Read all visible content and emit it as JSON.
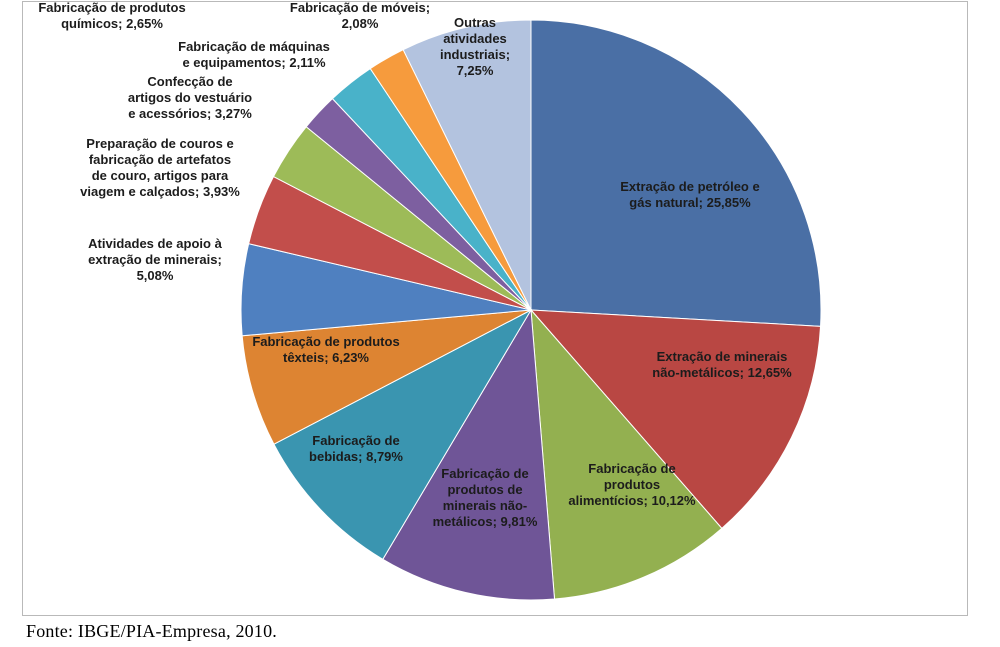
{
  "chart_data": {
    "type": "pie",
    "slices": [
      {
        "label": "Extração de petróleo e gás natural",
        "value": 25.85,
        "display": "25,85%",
        "color": "#4a6fa5"
      },
      {
        "label": "Extração de minerais não-metálicos",
        "value": 12.65,
        "display": "12,65%",
        "color": "#b94743"
      },
      {
        "label": "Fabricação de produtos alimentícios",
        "value": 10.12,
        "display": "10,12%",
        "color": "#93b050"
      },
      {
        "label": "Fabricação de produtos de minerais não-metálicos",
        "value": 9.81,
        "display": "9,81%",
        "color": "#6f5597"
      },
      {
        "label": "Fabricação de bebidas",
        "value": 8.79,
        "display": "8,79%",
        "color": "#3a95b0"
      },
      {
        "label": "Fabricação de produtos têxteis",
        "value": 6.23,
        "display": "6,23%",
        "color": "#dd8432"
      },
      {
        "label": "Atividades de apoio à extração de minerais",
        "value": 5.08,
        "display": "5,08%",
        "color": "#4f80c0"
      },
      {
        "label": "Preparação de couros e fabricação de artefatos de couro, artigos para viagem e calçados",
        "value": 3.93,
        "display": "3,93%",
        "color": "#c24e4b"
      },
      {
        "label": "Confecção de artigos do vestuário e acessórios",
        "value": 3.27,
        "display": "3,27%",
        "color": "#9dbb58"
      },
      {
        "label": "Fabricação de máquinas e equipamentos",
        "value": 2.11,
        "display": "2,11%",
        "color": "#7d5fa0"
      },
      {
        "label": "Fabricação de produtos químicos",
        "value": 2.65,
        "display": "2,65%",
        "color": "#49b2c9"
      },
      {
        "label": "Fabricação de móveis",
        "value": 2.08,
        "display": "2,08%",
        "color": "#f69b3d"
      },
      {
        "label": "Outras atividades industriais",
        "value": 7.25,
        "display": "7,25%",
        "color": "#b3c3df"
      }
    ],
    "labels": [
      {
        "lines": [
          "Extração de petróleo e",
          "gás natural; 25,85%"
        ]
      },
      {
        "lines": [
          "Extração de minerais",
          "não-metálicos; 12,65%"
        ]
      },
      {
        "lines": [
          "Fabricação de",
          "produtos",
          "alimentícios; 10,12%"
        ]
      },
      {
        "lines": [
          "Fabricação de",
          "produtos de",
          "minerais não-",
          "metálicos; 9,81%"
        ]
      },
      {
        "lines": [
          "Fabricação de",
          "bebidas; 8,79%"
        ]
      },
      {
        "lines": [
          "Fabricação de produtos",
          "têxteis; 6,23%"
        ]
      },
      {
        "lines": [
          "Atividades de apoio à",
          "extração de minerais;",
          "5,08%"
        ]
      },
      {
        "lines": [
          "Preparação de couros e",
          "fabricação de artefatos",
          "de couro, artigos para",
          "viagem e calçados; 3,93%"
        ]
      },
      {
        "lines": [
          "Confecção de",
          "artigos do vestuário",
          "e acessórios; 3,27%"
        ]
      },
      {
        "lines": [
          "Fabricação de máquinas",
          "e equipamentos; 2,11%"
        ]
      },
      {
        "lines": [
          "Fabricação de produtos",
          "químicos; 2,65%"
        ]
      },
      {
        "lines": [
          "Fabricação de móveis;",
          "2,08%"
        ]
      },
      {
        "lines": [
          "Outras",
          "atividades",
          "industriais;",
          "7,25%"
        ]
      }
    ],
    "start_angle_deg": 0,
    "direction": "clockwise",
    "legend": "none"
  },
  "source": "Fonte: IBGE/PIA-Empresa, 2010."
}
